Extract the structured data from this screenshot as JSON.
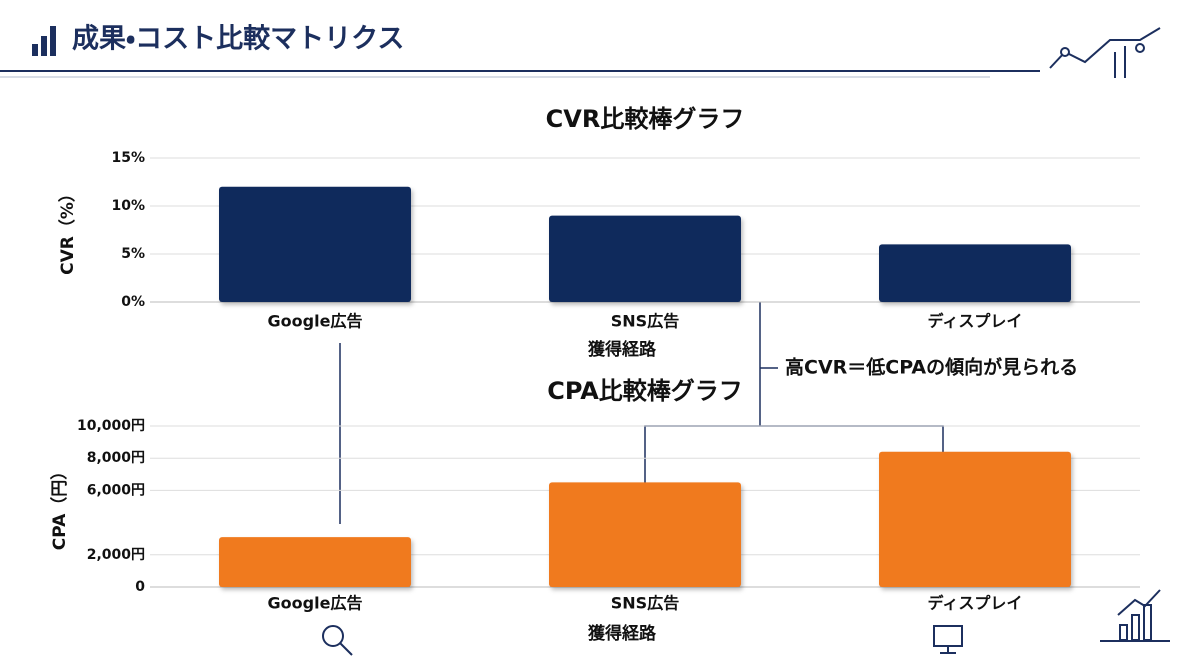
{
  "header": {
    "title": "成果・コスト比較マトリクス"
  },
  "annotation": "高CVR＝低CPAの傾向が見られる",
  "chart_data": [
    {
      "type": "bar",
      "title": "CVR比較棒グラフ",
      "y_label": "CVR（%）",
      "x_label": "獲得経路",
      "categories": [
        "Google広告",
        "SNS広告",
        "ディスプレイ"
      ],
      "values": [
        12,
        9,
        6
      ],
      "color": "#0f2a5c",
      "ylim": [
        0,
        15
      ],
      "yticks": [
        {
          "value": 0,
          "label": "0%"
        },
        {
          "value": 5,
          "label": "5%"
        },
        {
          "value": 10,
          "label": "10%"
        },
        {
          "value": 15,
          "label": "15%"
        }
      ],
      "grid": true
    },
    {
      "type": "bar",
      "title": "CPA比較棒グラフ",
      "y_label": "CPA（円）",
      "x_label": "獲得経路",
      "categories": [
        "Google広告",
        "SNS広告",
        "ディスプレイ"
      ],
      "values": [
        3100,
        6500,
        8400
      ],
      "color": "#f07a1e",
      "ylim": [
        0,
        10000
      ],
      "yticks": [
        0,
        {
          "value": 2000,
          "label": "2,000円"
        },
        {
          "value": 6000,
          "label": "6,000円"
        },
        {
          "value": 8000,
          "label": "8,000円"
        },
        {
          "value": 10000,
          "label": "10,000円"
        }
      ],
      "grid": true
    }
  ]
}
